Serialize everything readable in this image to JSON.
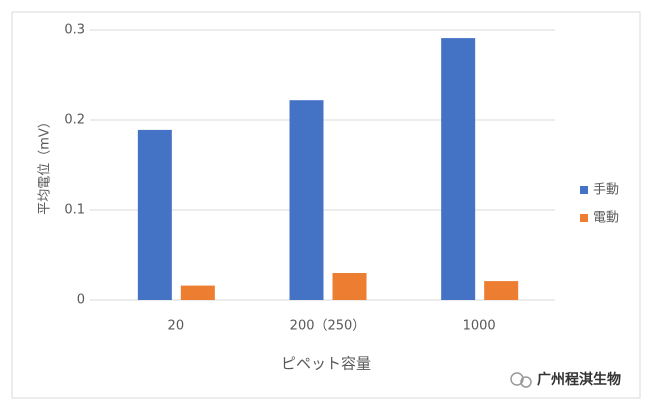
{
  "chart_data": {
    "type": "bar",
    "y_label": "平均電位（mV）",
    "x_label": "ピペット容量",
    "categories": [
      "20",
      "200（250）",
      "1000"
    ],
    "series": [
      {
        "name": "手動",
        "color": "#4472c4",
        "values": [
          0.189,
          0.222,
          0.291
        ]
      },
      {
        "name": "電動",
        "color": "#ed7d31",
        "values": [
          0.016,
          0.03,
          0.021
        ]
      }
    ],
    "ylim": [
      0,
      0.3
    ],
    "yticks": [
      0,
      0.1,
      0.2,
      0.3
    ],
    "grid": true,
    "legend": "right",
    "watermark": "广州程淇生物"
  }
}
